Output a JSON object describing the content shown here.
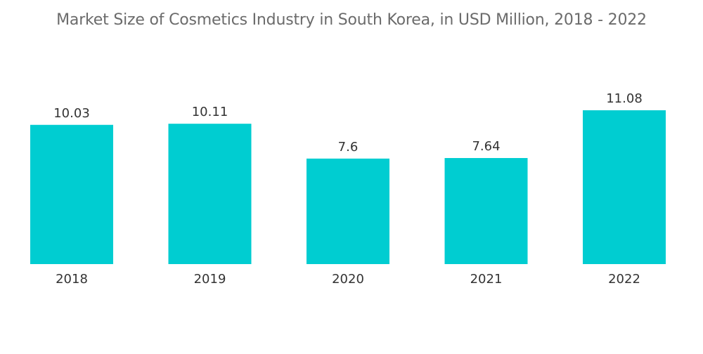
{
  "chart_data": {
    "type": "bar",
    "title": "Market Size of Cosmetics Industry in South Korea, in USD Million, 2018 -  2022",
    "categories": [
      "2018",
      "2019",
      "2020",
      "2021",
      "2022"
    ],
    "values": [
      10.03,
      10.11,
      7.6,
      7.64,
      11.08
    ],
    "value_labels": [
      "10.03",
      "10.11",
      "7.6",
      "7.64",
      "11.08"
    ],
    "xlabel": "",
    "ylabel": "",
    "ylim": [
      0,
      11.08
    ],
    "grid": false,
    "legend": "none",
    "colors": {
      "bar": "#00CDD1"
    }
  }
}
